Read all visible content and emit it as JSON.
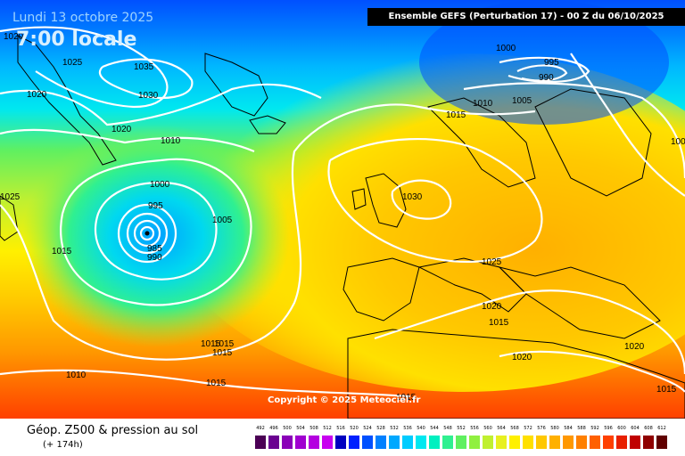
{
  "header": {
    "date": "Lundi 13 octobre 2025",
    "time": "7:00 locale",
    "run": "Ensemble GEFS  (Perturbation 17)  -  00 Z du 06/10/2025"
  },
  "map": {
    "copyright": "Copyright © 2025 Meteociel.fr",
    "isobar_labels": [
      "1020",
      "1025",
      "1035",
      "1030",
      "1020",
      "1020",
      "1010",
      "1000",
      "995",
      "985",
      "990",
      "1005",
      "1025",
      "1015",
      "1015",
      "1015",
      "1015",
      "1010",
      "1015",
      "1000",
      "995",
      "990",
      "1010",
      "1005",
      "1015",
      "1030",
      "1025",
      "1020",
      "1015",
      "1020",
      "1020",
      "1015",
      "1015",
      "1005"
    ],
    "highs_lows": [
      {
        "label": "1035",
        "type": "high"
      },
      {
        "label": "1030",
        "type": "high"
      },
      {
        "label": "985",
        "type": "low"
      },
      {
        "label": "990",
        "type": "low"
      }
    ]
  },
  "footer": {
    "title": "Géop. Z500 & pression au sol",
    "subtitle": "(+ 174h)"
  },
  "legend": {
    "values": [
      "492",
      "496",
      "500",
      "504",
      "508",
      "512",
      "516",
      "520",
      "524",
      "528",
      "532",
      "536",
      "540",
      "544",
      "548",
      "552",
      "556",
      "560",
      "564",
      "568",
      "572",
      "576",
      "580",
      "584",
      "588",
      "592",
      "596",
      "600",
      "604",
      "608",
      "612"
    ],
    "colors": [
      "#4b0055",
      "#6a0090",
      "#8a00b8",
      "#a000d0",
      "#b400e0",
      "#c800f0",
      "#0000c0",
      "#0020ff",
      "#0050ff",
      "#0080ff",
      "#00a8ff",
      "#00ccff",
      "#00e8f0",
      "#00f0c0",
      "#30f090",
      "#60f060",
      "#90f040",
      "#c0f030",
      "#e8f020",
      "#fff000",
      "#ffe000",
      "#ffc800",
      "#ffb000",
      "#ff9800",
      "#ff8000",
      "#ff6000",
      "#ff4000",
      "#e82000",
      "#c00000",
      "#900000",
      "#600000"
    ]
  }
}
